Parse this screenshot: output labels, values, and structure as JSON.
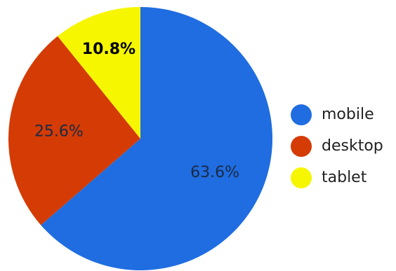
{
  "chart_data": {
    "type": "pie",
    "title": "",
    "slices": [
      {
        "label": "mobile",
        "value": 63.6,
        "value_label": "63.6%",
        "color": "#1f6de0",
        "label_color": "#1a2a44",
        "label_weight": "normal"
      },
      {
        "label": "desktop",
        "value": 25.6,
        "value_label": "25.6%",
        "color": "#d43b05",
        "label_color": "#1a2a44",
        "label_weight": "normal"
      },
      {
        "label": "tablet",
        "value": 10.8,
        "value_label": "10.8%",
        "color": "#f6f600",
        "label_color": "#000000",
        "label_weight": "bold"
      }
    ],
    "start_angle_deg": 0,
    "direction": "clockwise",
    "legend": {
      "position": "right",
      "items": [
        "mobile",
        "desktop",
        "tablet"
      ]
    }
  }
}
